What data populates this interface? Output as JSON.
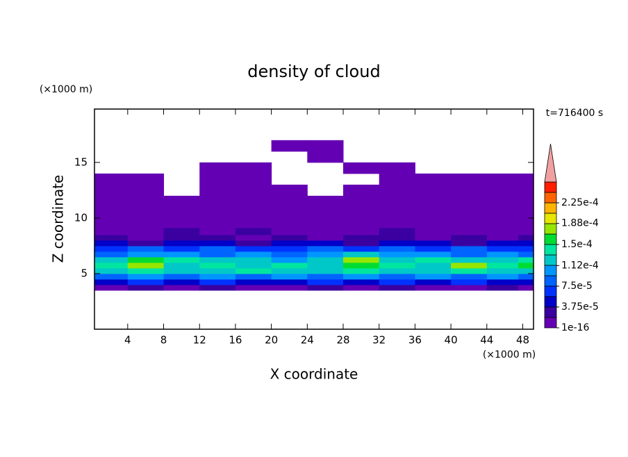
{
  "chart_data": {
    "type": "contour",
    "title": "density of cloud",
    "y_unit_label": "(×1000 m)",
    "x_unit_label": "(×1000 m)",
    "xlabel": "X coordinate",
    "ylabel": "Z coordinate",
    "annotation": "t=716400 s",
    "xlim": [
      0.3,
      49.2
    ],
    "ylim": [
      0,
      19.8
    ],
    "xticks": [
      4,
      8,
      12,
      16,
      20,
      24,
      28,
      32,
      36,
      40,
      44,
      48
    ],
    "yticks": [
      5,
      10,
      15
    ],
    "x": [
      2,
      6,
      10,
      14,
      18,
      22,
      26,
      30,
      34,
      38,
      42,
      46,
      49
    ],
    "y": [
      3.25,
      3.75,
      4.25,
      4.75,
      5.25,
      5.75,
      6.25,
      6.75,
      7.25,
      7.75,
      8.25,
      8.75,
      9.5,
      10.5,
      11.5,
      12.5,
      13.5,
      14.5,
      15.5,
      16.5
    ],
    "z": [
      [
        null,
        null,
        null,
        null,
        null,
        null,
        null,
        null,
        null,
        null,
        null,
        null,
        null
      ],
      [
        1e-05,
        3e-05,
        1e-05,
        3e-05,
        1e-05,
        1e-05,
        3e-05,
        1e-05,
        3e-05,
        1e-05,
        1e-05,
        3e-05,
        1e-05
      ],
      [
        4e-05,
        6e-05,
        4e-05,
        6e-05,
        4e-05,
        4e-05,
        6e-05,
        4e-05,
        6e-05,
        4e-05,
        6e-05,
        4e-05,
        4e-05
      ],
      [
        8e-05,
        0.0001,
        8e-05,
        0.0001,
        8e-05,
        0.0001,
        8e-05,
        0.0001,
        8e-05,
        0.0001,
        8e-05,
        0.0001,
        8e-05
      ],
      [
        0.00012,
        0.00014,
        0.00012,
        0.00012,
        0.00014,
        0.00012,
        0.00012,
        0.00014,
        0.00012,
        0.00012,
        0.00014,
        0.00012,
        0.00012
      ],
      [
        0.00014,
        0.00018,
        0.00012,
        0.00014,
        0.00012,
        0.00014,
        0.00012,
        0.00016,
        0.00014,
        0.00012,
        0.00018,
        0.00014,
        0.00016
      ],
      [
        0.00012,
        0.00016,
        0.00014,
        0.00012,
        0.00012,
        0.0001,
        0.00012,
        0.00018,
        0.00012,
        0.00014,
        0.00012,
        0.00012,
        0.00014
      ],
      [
        8e-05,
        0.0001,
        0.0001,
        8e-05,
        0.0001,
        8e-05,
        0.0001,
        0.00012,
        0.0001,
        0.0001,
        8e-05,
        0.0001,
        8e-05
      ],
      [
        6e-05,
        8e-05,
        6e-05,
        8e-05,
        6e-05,
        6e-05,
        8e-05,
        6e-05,
        8e-05,
        6e-05,
        8e-05,
        6e-05,
        6e-05
      ],
      [
        4e-05,
        3e-05,
        4e-05,
        4e-05,
        3e-05,
        4e-05,
        4e-05,
        3e-05,
        4e-05,
        4e-05,
        3e-05,
        4e-05,
        4e-05
      ],
      [
        3e-05,
        1e-05,
        3e-05,
        3e-05,
        1e-05,
        3e-05,
        1e-05,
        3e-05,
        3e-05,
        1e-05,
        3e-05,
        1e-05,
        3e-05
      ],
      [
        1e-05,
        1e-05,
        3e-05,
        1e-05,
        3e-05,
        1e-05,
        1e-05,
        1e-05,
        3e-05,
        1e-05,
        1e-05,
        1e-05,
        1e-05
      ],
      [
        1e-16,
        1e-16,
        1e-16,
        1e-05,
        1e-16,
        1e-16,
        1e-16,
        1e-16,
        1e-05,
        1e-16,
        1e-16,
        1e-16,
        1e-16
      ],
      [
        1e-16,
        1e-16,
        1e-16,
        1e-16,
        1e-16,
        1e-16,
        1e-16,
        1e-16,
        1e-16,
        1e-16,
        1e-16,
        1e-16,
        1e-16
      ],
      [
        1e-16,
        1e-16,
        1e-16,
        1e-16,
        1e-16,
        1e-16,
        1e-16,
        1e-16,
        1e-16,
        1e-16,
        1e-16,
        1e-16,
        1e-16
      ],
      [
        1e-16,
        1e-16,
        null,
        1e-16,
        1e-16,
        1e-16,
        null,
        1e-16,
        1e-16,
        1e-16,
        1e-16,
        1e-16,
        1e-16
      ],
      [
        1e-16,
        1e-16,
        null,
        1e-16,
        1e-16,
        null,
        null,
        null,
        1e-16,
        1e-16,
        1e-16,
        1e-16,
        1e-16
      ],
      [
        null,
        null,
        null,
        1e-16,
        1e-16,
        null,
        null,
        1e-16,
        1e-16,
        null,
        null,
        null,
        null
      ],
      [
        null,
        null,
        null,
        null,
        null,
        null,
        1e-16,
        null,
        null,
        null,
        null,
        null,
        null
      ],
      [
        null,
        null,
        null,
        null,
        null,
        1e-16,
        1e-16,
        null,
        null,
        null,
        null,
        null,
        null
      ]
    ],
    "colorbar": {
      "levels": [
        1e-16,
        1.875e-05,
        3.75e-05,
        5.625e-05,
        7.5e-05,
        9.375e-05,
        0.0001125,
        0.00013125,
        0.00015,
        0.00016875,
        0.0001875,
        0.00020625,
        0.000225,
        0.00024375,
        0.0002625
      ],
      "colors": [
        "#6400b4",
        "#3a00a0",
        "#0000c8",
        "#0032ff",
        "#0064ff",
        "#0096ff",
        "#00c8c8",
        "#00e6a0",
        "#00dc32",
        "#96e600",
        "#e6e600",
        "#ffb400",
        "#ff6400",
        "#ff1e00"
      ],
      "extend_color": "#f0a0a0",
      "ticks": [
        {
          "value": 1e-16,
          "label": "1e-16"
        },
        {
          "value": 3.75e-05,
          "label": "3.75e-5"
        },
        {
          "value": 7.5e-05,
          "label": "7.5e-5"
        },
        {
          "value": 0.000112,
          "label": "1.12e-4"
        },
        {
          "value": 0.00015,
          "label": "1.5e-4"
        },
        {
          "value": 0.000188,
          "label": "1.88e-4"
        },
        {
          "value": 0.000225,
          "label": "2.25e-4"
        }
      ]
    }
  }
}
